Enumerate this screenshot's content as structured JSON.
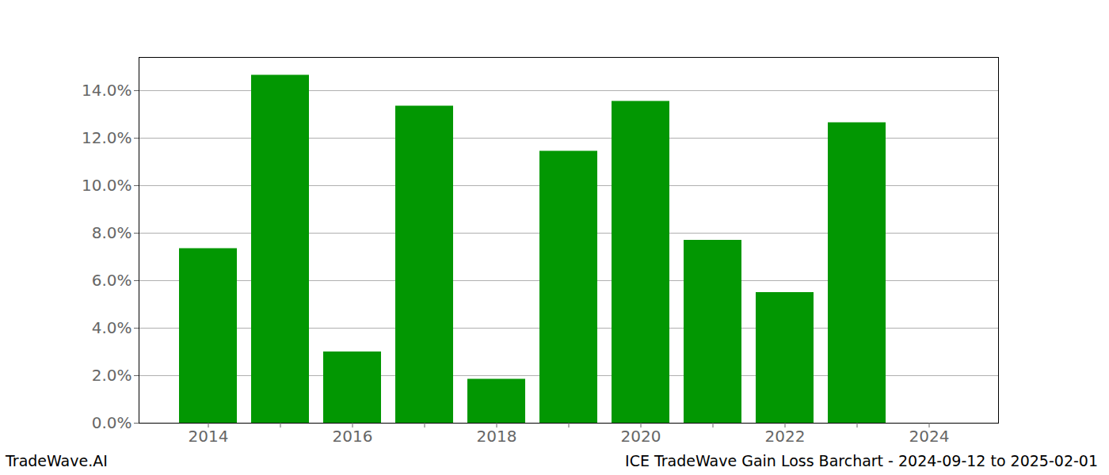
{
  "chart_data": {
    "type": "bar",
    "categories": [
      "2014",
      null,
      "2016",
      null,
      "2018",
      null,
      "2020",
      null,
      "2022",
      null,
      "2024"
    ],
    "values": [
      7.35,
      14.65,
      3.0,
      13.35,
      1.85,
      11.45,
      13.55,
      7.7,
      5.5,
      12.65,
      null
    ],
    "color": "#029702",
    "ylim": [
      0,
      15.4
    ],
    "yticks": [
      {
        "value": 0,
        "label": "0.0%"
      },
      {
        "value": 2,
        "label": "2.0%"
      },
      {
        "value": 4,
        "label": "4.0%"
      },
      {
        "value": 6,
        "label": "6.0%"
      },
      {
        "value": 8,
        "label": "8.0%"
      },
      {
        "value": 10,
        "label": "10.0%"
      },
      {
        "value": 12,
        "label": "12.0%"
      },
      {
        "value": 14,
        "label": "14.0%"
      }
    ],
    "grid": true,
    "footer_left": "TradeWave.AI",
    "footer_right": "ICE TradeWave Gain Loss Barchart - 2024-09-12 to 2025-02-01"
  }
}
